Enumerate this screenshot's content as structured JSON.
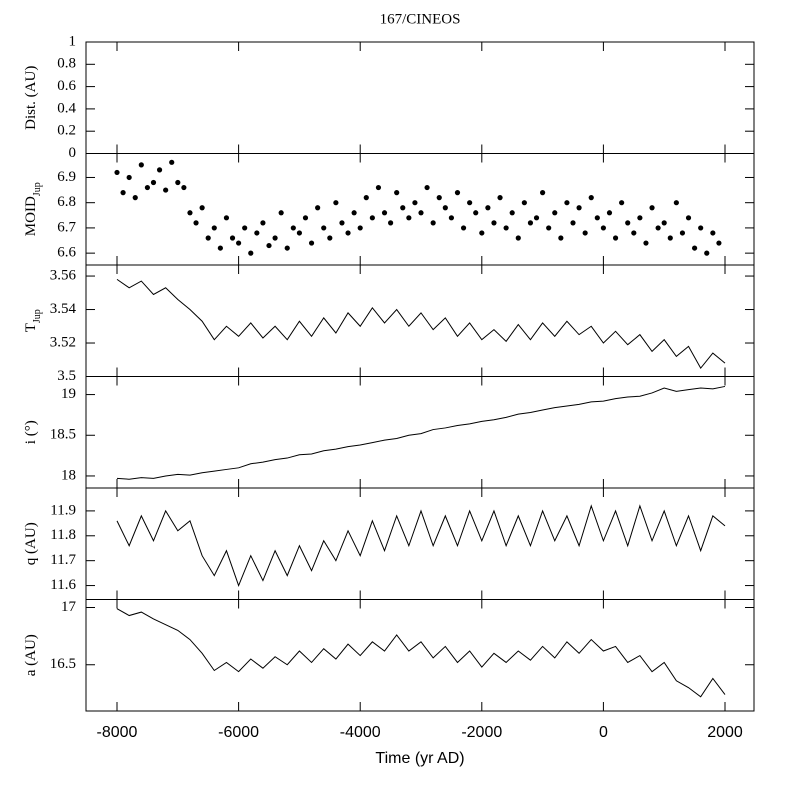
{
  "chart_data": [
    {
      "type": "line",
      "title": "167/CINEOS",
      "ylabel": "Dist. (AU)",
      "ylim": [
        0,
        1
      ],
      "yticks": [
        0,
        0.2,
        0.4,
        0.6,
        0.8,
        1
      ]
    },
    {
      "type": "scatter",
      "ylabel": "MOID",
      "ylabel_sub": "Jup",
      "ylim": [
        6.553,
        6.995
      ],
      "yticks": [
        6.6,
        6.7,
        6.8,
        6.9
      ],
      "color": "#000000",
      "x": [
        -8000,
        -7900,
        -7800,
        -7700,
        -7600,
        -7500,
        -7400,
        -7300,
        -7200,
        -7100,
        -7000,
        -6900,
        -6800,
        -6700,
        -6600,
        -6500,
        -6400,
        -6300,
        -6200,
        -6100,
        -6000,
        -5900,
        -5800,
        -5700,
        -5600,
        -5500,
        -5400,
        -5300,
        -5200,
        -5100,
        -5000,
        -4900,
        -4800,
        -4700,
        -4600,
        -4500,
        -4400,
        -4300,
        -4200,
        -4100,
        -4000,
        -3900,
        -3800,
        -3700,
        -3600,
        -3500,
        -3400,
        -3300,
        -3200,
        -3100,
        -3000,
        -2900,
        -2800,
        -2700,
        -2600,
        -2500,
        -2400,
        -2300,
        -2200,
        -2100,
        -2000,
        -1900,
        -1800,
        -1700,
        -1600,
        -1500,
        -1400,
        -1300,
        -1200,
        -1100,
        -1000,
        -900,
        -800,
        -700,
        -600,
        -500,
        -400,
        -300,
        -200,
        -100,
        0,
        100,
        200,
        300,
        400,
        500,
        600,
        700,
        800,
        900,
        1000,
        1100,
        1200,
        1300,
        1400,
        1500,
        1600,
        1700,
        1800,
        1900
      ],
      "values": [
        6.92,
        6.84,
        6.9,
        6.82,
        6.95,
        6.86,
        6.88,
        6.93,
        6.85,
        6.96,
        6.88,
        6.86,
        6.76,
        6.72,
        6.78,
        6.66,
        6.7,
        6.62,
        6.74,
        6.66,
        6.64,
        6.7,
        6.6,
        6.68,
        6.72,
        6.63,
        6.66,
        6.76,
        6.62,
        6.7,
        6.68,
        6.74,
        6.64,
        6.78,
        6.7,
        6.66,
        6.8,
        6.72,
        6.68,
        6.76,
        6.7,
        6.82,
        6.74,
        6.86,
        6.76,
        6.72,
        6.84,
        6.78,
        6.74,
        6.8,
        6.76,
        6.86,
        6.72,
        6.82,
        6.78,
        6.74,
        6.84,
        6.7,
        6.8,
        6.76,
        6.68,
        6.78,
        6.72,
        6.82,
        6.7,
        6.76,
        6.66,
        6.8,
        6.72,
        6.74,
        6.84,
        6.7,
        6.76,
        6.66,
        6.8,
        6.72,
        6.78,
        6.68,
        6.82,
        6.74,
        6.7,
        6.76,
        6.66,
        6.8,
        6.72,
        6.68,
        6.74,
        6.64,
        6.78,
        6.7,
        6.72,
        6.66,
        6.8,
        6.68,
        6.74,
        6.62,
        6.7,
        6.6,
        6.68,
        6.64
      ]
    },
    {
      "type": "line",
      "ylabel": "T",
      "ylabel_sub": "Jup",
      "ylim": [
        3.5,
        3.5666
      ],
      "yticks": [
        3.5,
        3.52,
        3.54,
        3.56
      ],
      "color": "#000000",
      "x": [
        -8000,
        -7800,
        -7600,
        -7400,
        -7200,
        -7000,
        -6800,
        -6600,
        -6400,
        -6200,
        -6000,
        -5800,
        -5600,
        -5400,
        -5200,
        -5000,
        -4800,
        -4600,
        -4400,
        -4200,
        -4000,
        -3800,
        -3600,
        -3400,
        -3200,
        -3000,
        -2800,
        -2600,
        -2400,
        -2200,
        -2000,
        -1800,
        -1600,
        -1400,
        -1200,
        -1000,
        -800,
        -600,
        -400,
        -200,
        0,
        200,
        400,
        600,
        800,
        1000,
        1200,
        1400,
        1600,
        1800,
        2000
      ],
      "values": [
        3.558,
        3.553,
        3.557,
        3.549,
        3.553,
        3.546,
        3.54,
        3.533,
        3.522,
        3.53,
        3.524,
        3.532,
        3.523,
        3.53,
        3.522,
        3.533,
        3.524,
        3.535,
        3.526,
        3.538,
        3.53,
        3.541,
        3.532,
        3.54,
        3.53,
        3.538,
        3.528,
        3.535,
        3.524,
        3.532,
        3.522,
        3.528,
        3.521,
        3.531,
        3.522,
        3.532,
        3.524,
        3.533,
        3.525,
        3.53,
        3.52,
        3.527,
        3.519,
        3.525,
        3.515,
        3.522,
        3.512,
        3.518,
        3.505,
        3.514,
        3.508
      ]
    },
    {
      "type": "line",
      "ylabel": "i (°)",
      "ylim": [
        17.852,
        19.222
      ],
      "yticks": [
        18,
        18.5,
        19
      ],
      "color": "#000000",
      "x": [
        -8000,
        -7800,
        -7600,
        -7400,
        -7200,
        -7000,
        -6800,
        -6600,
        -6400,
        -6200,
        -6000,
        -5800,
        -5600,
        -5400,
        -5200,
        -5000,
        -4800,
        -4600,
        -4400,
        -4200,
        -4000,
        -3800,
        -3600,
        -3400,
        -3200,
        -3000,
        -2800,
        -2600,
        -2400,
        -2200,
        -2000,
        -1800,
        -1600,
        -1400,
        -1200,
        -1000,
        -800,
        -600,
        -400,
        -200,
        0,
        200,
        400,
        600,
        800,
        1000,
        1200,
        1400,
        1600,
        1800,
        2000
      ],
      "values": [
        17.97,
        17.96,
        17.98,
        17.97,
        18.0,
        18.02,
        18.01,
        18.04,
        18.06,
        18.08,
        18.1,
        18.15,
        18.17,
        18.2,
        18.22,
        18.26,
        18.27,
        18.31,
        18.33,
        18.36,
        18.38,
        18.41,
        18.44,
        18.46,
        18.5,
        18.52,
        18.57,
        18.59,
        18.62,
        18.64,
        18.67,
        18.69,
        18.72,
        18.76,
        18.78,
        18.81,
        18.84,
        18.86,
        18.88,
        18.91,
        18.92,
        18.95,
        18.97,
        18.98,
        19.02,
        19.08,
        19.04,
        19.06,
        19.08,
        19.07,
        19.1
      ]
    },
    {
      "type": "line",
      "ylabel": "q (AU)",
      "ylim": [
        11.544,
        11.992
      ],
      "yticks": [
        11.6,
        11.7,
        11.8,
        11.9
      ],
      "color": "#000000",
      "x": [
        -8000,
        -7800,
        -7600,
        -7400,
        -7200,
        -7000,
        -6800,
        -6600,
        -6400,
        -6200,
        -6000,
        -5800,
        -5600,
        -5400,
        -5200,
        -5000,
        -4800,
        -4600,
        -4400,
        -4200,
        -4000,
        -3800,
        -3600,
        -3400,
        -3200,
        -3000,
        -2800,
        -2600,
        -2400,
        -2200,
        -2000,
        -1800,
        -1600,
        -1400,
        -1200,
        -1000,
        -800,
        -600,
        -400,
        -200,
        0,
        200,
        400,
        600,
        800,
        1000,
        1200,
        1400,
        1600,
        1800,
        2000
      ],
      "values": [
        11.86,
        11.76,
        11.88,
        11.78,
        11.9,
        11.82,
        11.86,
        11.72,
        11.64,
        11.74,
        11.6,
        11.72,
        11.62,
        11.74,
        11.64,
        11.76,
        11.66,
        11.78,
        11.7,
        11.82,
        11.72,
        11.86,
        11.74,
        11.88,
        11.76,
        11.9,
        11.76,
        11.88,
        11.76,
        11.9,
        11.78,
        11.9,
        11.76,
        11.88,
        11.76,
        11.9,
        11.78,
        11.88,
        11.76,
        11.92,
        11.78,
        11.9,
        11.76,
        11.92,
        11.78,
        11.9,
        11.76,
        11.88,
        11.74,
        11.88,
        11.84
      ]
    },
    {
      "type": "line",
      "ylabel": "a (AU)",
      "xlabel": "Time (yr AD)",
      "ylim": [
        16.096,
        17.07
      ],
      "yticks": [
        16.5,
        17
      ],
      "color": "#000000",
      "xlim": [
        -8510,
        2477
      ],
      "xticks": [
        -8000,
        -6000,
        -4000,
        -2000,
        0,
        2000
      ],
      "x": [
        -8000,
        -7800,
        -7600,
        -7400,
        -7200,
        -7000,
        -6800,
        -6600,
        -6400,
        -6200,
        -6000,
        -5800,
        -5600,
        -5400,
        -5200,
        -5000,
        -4800,
        -4600,
        -4400,
        -4200,
        -4000,
        -3800,
        -3600,
        -3400,
        -3200,
        -3000,
        -2800,
        -2600,
        -2400,
        -2200,
        -2000,
        -1800,
        -1600,
        -1400,
        -1200,
        -1000,
        -800,
        -600,
        -400,
        -200,
        0,
        200,
        400,
        600,
        800,
        1000,
        1200,
        1400,
        1600,
        1800,
        2000
      ],
      "values": [
        16.99,
        16.93,
        16.96,
        16.9,
        16.85,
        16.8,
        16.72,
        16.6,
        16.45,
        16.52,
        16.44,
        16.55,
        16.47,
        16.57,
        16.5,
        16.62,
        16.52,
        16.64,
        16.55,
        16.68,
        16.58,
        16.7,
        16.62,
        16.76,
        16.62,
        16.7,
        16.56,
        16.66,
        16.52,
        16.62,
        16.48,
        16.6,
        16.52,
        16.62,
        16.54,
        16.66,
        16.56,
        16.7,
        16.6,
        16.72,
        16.62,
        16.66,
        16.52,
        16.58,
        16.44,
        16.52,
        16.36,
        16.3,
        16.22,
        16.38,
        16.24
      ]
    }
  ]
}
